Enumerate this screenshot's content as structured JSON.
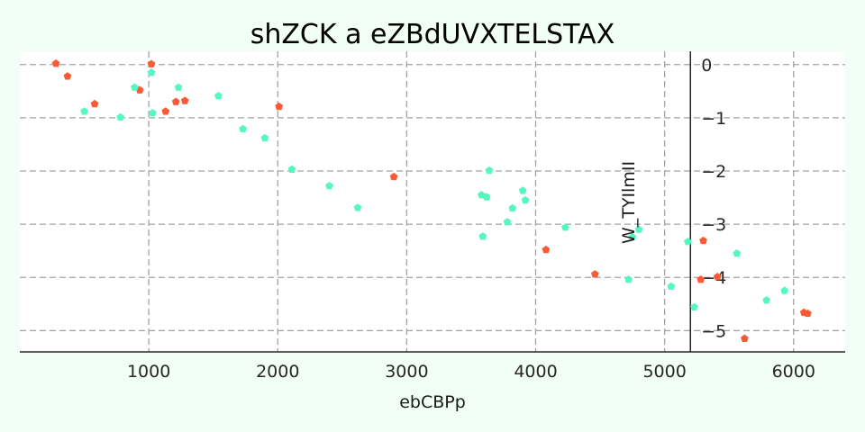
{
  "chart_data": {
    "type": "scatter",
    "title": "shZCK  a eZBdUVXTELSTAX",
    "xlabel": "ebCBPp",
    "ylabel": "W_TYIlmII",
    "xlim": [
      0,
      6400
    ],
    "ylim": [
      -5.4,
      0.25
    ],
    "xticks": [
      1000,
      2000,
      3000,
      4000,
      5000,
      6000
    ],
    "yticks": [
      0,
      -1,
      -2,
      -3,
      -4,
      -5
    ],
    "x_tick_labels": [
      "1000",
      "2000",
      "3000",
      "4000",
      "5000",
      "6000"
    ],
    "y_tick_labels": [
      "0",
      "−1",
      "−2",
      "−3",
      "−4",
      "−5"
    ],
    "y_axis_position_x": 5200,
    "grid": true,
    "legend": "none",
    "marker": "pentagon",
    "series": [
      {
        "color": "#fb5a34",
        "points": [
          [
            280,
            0.02
          ],
          [
            370,
            -0.22
          ],
          [
            580,
            -0.74
          ],
          [
            930,
            -0.48
          ],
          [
            1020,
            0.01
          ],
          [
            1130,
            -0.88
          ],
          [
            1210,
            -0.7
          ],
          [
            1280,
            -0.68
          ],
          [
            2010,
            -0.79
          ],
          [
            2900,
            -2.11
          ],
          [
            4080,
            -3.48
          ],
          [
            4460,
            -3.94
          ],
          [
            5280,
            -4.04
          ],
          [
            5300,
            -3.31
          ],
          [
            5410,
            -3.99
          ],
          [
            5620,
            -5.15
          ],
          [
            6080,
            -4.66
          ],
          [
            6110,
            -4.68
          ]
        ]
      },
      {
        "color": "#58f7bd",
        "points": [
          [
            500,
            -0.88
          ],
          [
            780,
            -0.99
          ],
          [
            890,
            -0.43
          ],
          [
            1020,
            -0.15
          ],
          [
            1030,
            -0.91
          ],
          [
            1230,
            -0.43
          ],
          [
            1540,
            -0.59
          ],
          [
            1730,
            -1.21
          ],
          [
            1900,
            -1.38
          ],
          [
            2110,
            -1.97
          ],
          [
            2400,
            -2.28
          ],
          [
            2620,
            -2.69
          ],
          [
            3580,
            -2.45
          ],
          [
            3590,
            -3.23
          ],
          [
            3620,
            -2.49
          ],
          [
            3640,
            -1.99
          ],
          [
            3780,
            -2.96
          ],
          [
            3820,
            -2.7
          ],
          [
            3900,
            -2.37
          ],
          [
            3920,
            -2.55
          ],
          [
            4230,
            -3.06
          ],
          [
            4720,
            -4.04
          ],
          [
            4750,
            -3.24
          ],
          [
            4800,
            -3.1
          ],
          [
            5050,
            -4.17
          ],
          [
            5180,
            -3.33
          ],
          [
            5230,
            -4.56
          ],
          [
            5560,
            -3.55
          ],
          [
            5790,
            -4.43
          ],
          [
            5930,
            -4.25
          ]
        ]
      }
    ]
  }
}
